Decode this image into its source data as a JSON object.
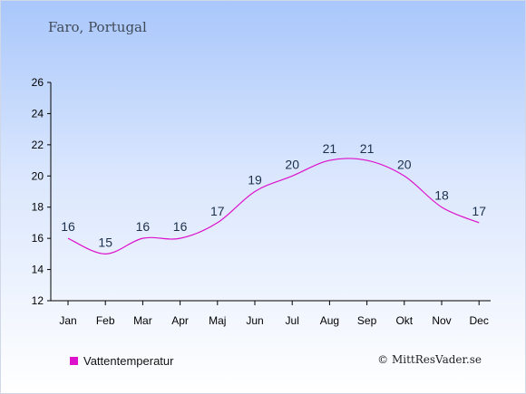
{
  "location": "Faro, Portugal",
  "chart_data": {
    "type": "line",
    "categories": [
      "Jan",
      "Feb",
      "Mar",
      "Apr",
      "Maj",
      "Jun",
      "Jul",
      "Aug",
      "Sep",
      "Okt",
      "Nov",
      "Dec"
    ],
    "series": [
      {
        "name": "Vattentemperatur",
        "values": [
          16,
          15,
          16,
          16,
          17,
          19,
          20,
          21,
          21,
          20,
          18,
          17
        ],
        "color": "#dd11cc"
      }
    ],
    "data_labels": [
      "16",
      "15",
      "16",
      "16",
      "17",
      "19",
      "20",
      "21",
      "21",
      "20",
      "18",
      "17"
    ],
    "ylim": [
      12,
      26
    ],
    "yticks": [
      12,
      14,
      16,
      18,
      20,
      22,
      24,
      26
    ],
    "grid": false,
    "legend_position": "bottom-left"
  },
  "legend": {
    "label": "Vattentemperatur",
    "color": "#dd11cc"
  },
  "credit": "© MittResVader.se"
}
